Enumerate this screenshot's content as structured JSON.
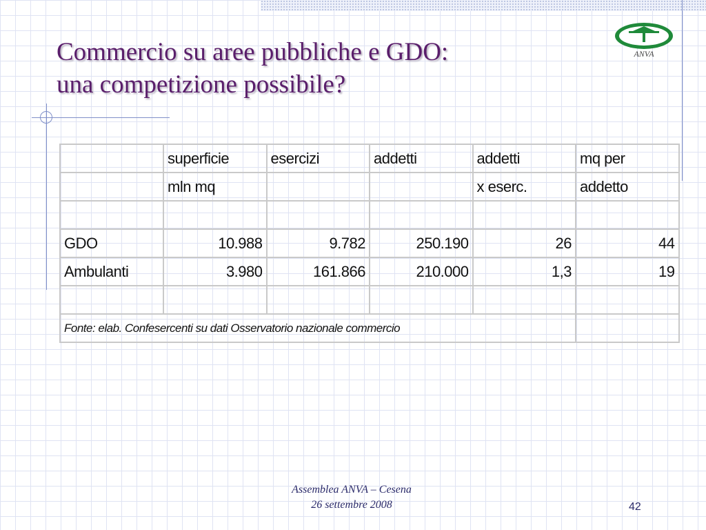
{
  "slide": {
    "title_line1": "Commercio su aree pubbliche e GDO:",
    "title_line2": "una competizione possibile?",
    "logo_text": "ANVA",
    "footer_line1": "Assemblea ANVA – Cesena",
    "footer_line2": "26 settembre 2008",
    "page_number": "42"
  },
  "table": {
    "header1": [
      "",
      "superficie",
      "esercizi",
      "addetti",
      "addetti",
      "mq per"
    ],
    "header2": [
      "",
      "mln mq",
      "",
      "",
      "x eserc.",
      "addetto"
    ],
    "rows": [
      [
        "GDO",
        "10.988",
        "9.782",
        "250.190",
        "26",
        "44"
      ],
      [
        "Ambulanti",
        "3.980",
        "161.866",
        "210.000",
        "1,3",
        "19"
      ]
    ],
    "source": "Fonte: elab. Confesercenti su dati Osservatorio nazionale commercio"
  }
}
